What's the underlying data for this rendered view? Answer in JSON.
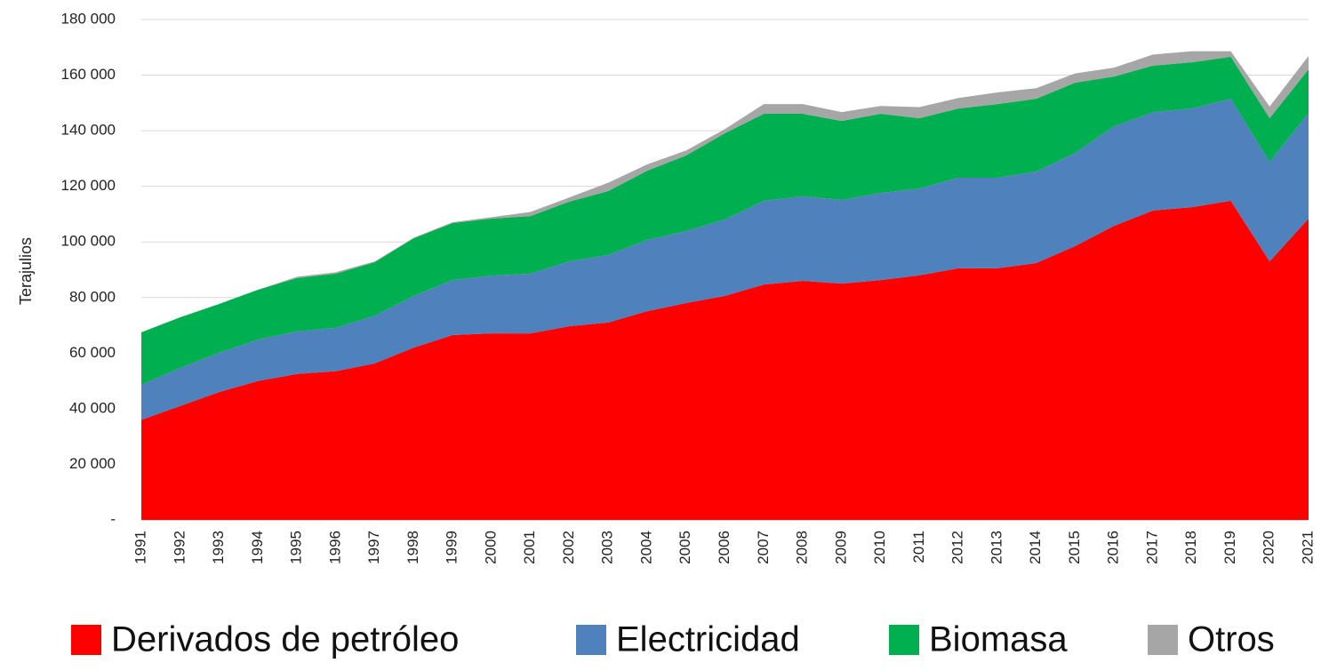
{
  "chart_data": {
    "type": "stacked_area",
    "y_axis_label": "Terajulios",
    "x": [
      1991,
      1992,
      1993,
      1994,
      1995,
      1996,
      1997,
      1998,
      1999,
      2000,
      2001,
      2002,
      2003,
      2004,
      2005,
      2006,
      2007,
      2008,
      2009,
      2010,
      2011,
      2012,
      2013,
      2014,
      2015,
      2016,
      2017,
      2018,
      2019,
      2020,
      2021
    ],
    "xlim": [
      1991,
      2021
    ],
    "ylim": [
      0,
      180000
    ],
    "yticks": [
      {
        "value": 0,
        "label": "-"
      },
      {
        "value": 20000,
        "label": "20 000"
      },
      {
        "value": 40000,
        "label": "40 000"
      },
      {
        "value": 60000,
        "label": "60 000"
      },
      {
        "value": 80000,
        "label": "80 000"
      },
      {
        "value": 100000,
        "label": "100 000"
      },
      {
        "value": 120000,
        "label": "120 000"
      },
      {
        "value": 140000,
        "label": "140 000"
      },
      {
        "value": 160000,
        "label": "160 000"
      },
      {
        "value": 180000,
        "label": "180 000"
      }
    ],
    "grid": true,
    "legend": "bottom",
    "series": [
      {
        "name": "Derivados de petróleo",
        "color": "#ff0000",
        "values": [
          36000,
          41000,
          46000,
          50000,
          52500,
          53500,
          56300,
          62000,
          66500,
          67100,
          67100,
          69700,
          71000,
          75100,
          78000,
          80600,
          84700,
          86000,
          85000,
          86300,
          88000,
          90500,
          90500,
          92400,
          98500,
          105800,
          111300,
          112500,
          114800,
          93000,
          108400
        ]
      },
      {
        "name": "Electricidad",
        "color": "#4f81bd",
        "values": [
          12600,
          13700,
          14100,
          14900,
          15300,
          15600,
          17200,
          18600,
          19800,
          20800,
          21500,
          23300,
          24300,
          25600,
          25900,
          27500,
          30100,
          30400,
          30100,
          31300,
          31200,
          32600,
          32600,
          32900,
          33500,
          35800,
          35400,
          35500,
          36700,
          35800,
          38000
        ]
      },
      {
        "name": "Biomasa",
        "color": "#00b050",
        "values": [
          18900,
          18200,
          17600,
          17900,
          19200,
          19500,
          19200,
          20700,
          20500,
          20500,
          20700,
          21500,
          23000,
          24900,
          27200,
          31000,
          31300,
          29700,
          28400,
          28500,
          25300,
          24900,
          26500,
          26200,
          25300,
          17900,
          16700,
          16600,
          15100,
          15700,
          15700
        ]
      },
      {
        "name": "Otros",
        "color": "#a6a6a6",
        "values": [
          0,
          0,
          0,
          0,
          500,
          500,
          300,
          200,
          300,
          500,
          1500,
          1500,
          3000,
          2300,
          1800,
          1500,
          3500,
          3500,
          3200,
          2800,
          4000,
          3800,
          4200,
          3800,
          3300,
          3200,
          4000,
          4000,
          2000,
          4200,
          4800
        ]
      }
    ]
  }
}
